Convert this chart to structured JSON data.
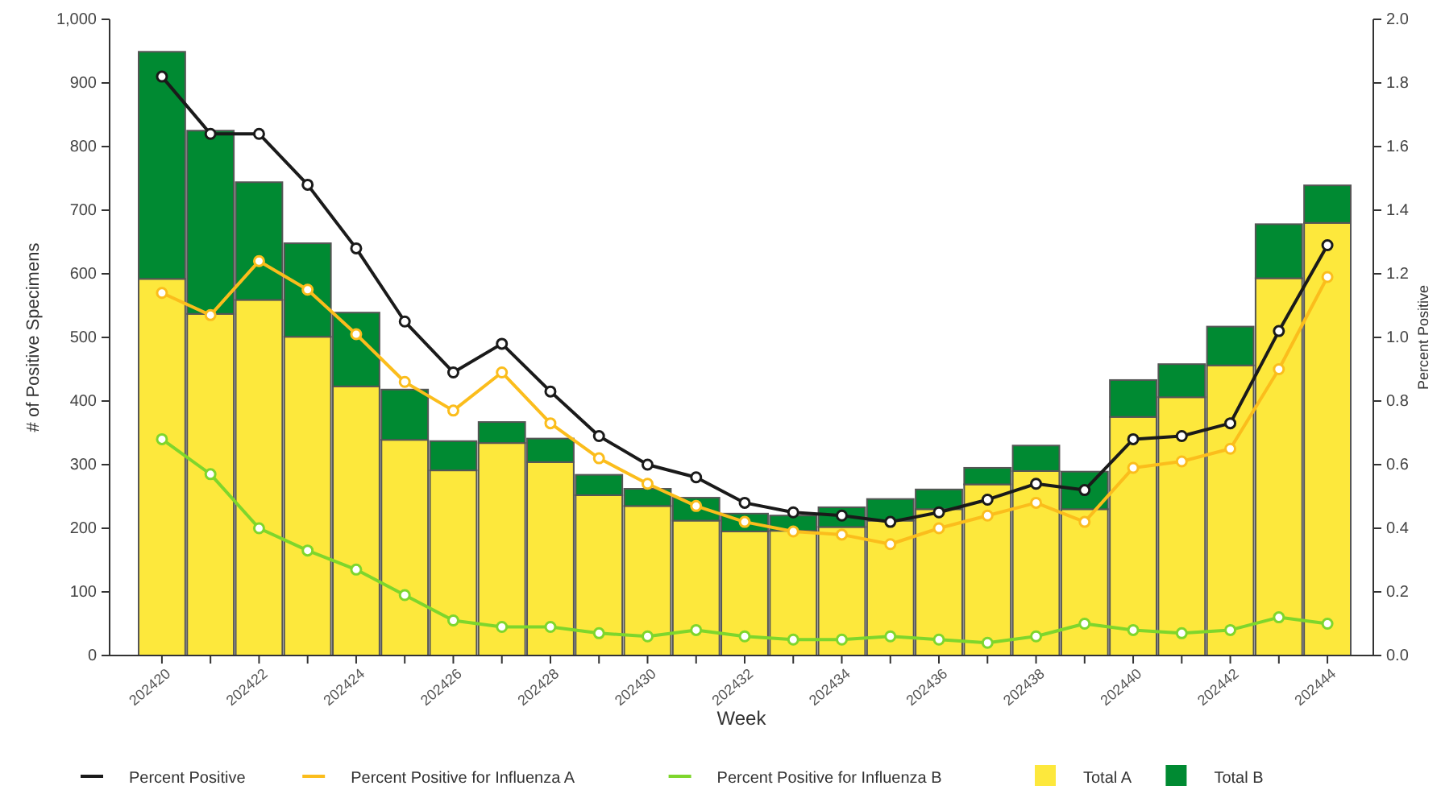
{
  "chart_data": {
    "type": "bar",
    "stacked": true,
    "xlabel": "Week",
    "ylabel": "# of Positive Specimens",
    "y2label": "Percent Positive",
    "categories": [
      "202420",
      null,
      "202422",
      null,
      "202424",
      null,
      "202426",
      null,
      "202428",
      null,
      "202430",
      null,
      "202432",
      null,
      "202434",
      null,
      "202436",
      null,
      "202438",
      null,
      "202440",
      null,
      "202442",
      null,
      "202444"
    ],
    "ylim": [
      0,
      1000
    ],
    "yticks": [
      0,
      100,
      200,
      300,
      400,
      500,
      600,
      700,
      800,
      900,
      {
        "value": 1000,
        "label": "1,000"
      }
    ],
    "y2lim": [
      0,
      2
    ],
    "y2ticks": [
      {
        "value": 0,
        "label": "0.0"
      },
      {
        "value": 0.2,
        "label": "0.2"
      },
      {
        "value": 0.4,
        "label": "0.4"
      },
      {
        "value": 0.6,
        "label": "0.6"
      },
      {
        "value": 0.8,
        "label": "0.8"
      },
      {
        "value": 1,
        "label": "1.0"
      },
      {
        "value": 1.2,
        "label": "1.2"
      },
      {
        "value": 1.4,
        "label": "1.4"
      },
      {
        "value": 1.6,
        "label": "1.6"
      },
      {
        "value": 1.8,
        "label": "1.8"
      },
      {
        "value": 2,
        "label": "2.0"
      }
    ],
    "grid": false,
    "legend": "bottom",
    "marker": "circle",
    "line_style": "solid",
    "series": [
      {
        "name": "Total A",
        "color": "#fde83c",
        "values": [
          592,
          537,
          559,
          501,
          423,
          339,
          291,
          334,
          304,
          252,
          235,
          212,
          195,
          196,
          202,
          212,
          230,
          269,
          290,
          230,
          375,
          406,
          456,
          593,
          680
        ]
      },
      {
        "name": "Total B",
        "color": "#008a32",
        "values": [
          357,
          288,
          185,
          147,
          116,
          79,
          46,
          33,
          37,
          32,
          27,
          36,
          28,
          24,
          31,
          34,
          31,
          26,
          40,
          59,
          58,
          52,
          61,
          85,
          59
        ]
      },
      {
        "name": "Percent Positive",
        "type": "line",
        "axis": "y2",
        "color": "#1a1a1a",
        "values": [
          1.82,
          1.64,
          1.64,
          1.48,
          1.28,
          1.05,
          0.89,
          0.98,
          0.83,
          0.69,
          0.6,
          0.56,
          0.48,
          0.45,
          0.44,
          0.42,
          0.45,
          0.49,
          0.54,
          0.52,
          0.68,
          0.69,
          0.73,
          1.02,
          1.29
        ]
      },
      {
        "name": "Percent Positive for Influenza A",
        "type": "line",
        "axis": "y2",
        "color": "#fbbd1c",
        "values": [
          1.14,
          1.07,
          1.24,
          1.15,
          1.01,
          0.86,
          0.77,
          0.89,
          0.73,
          0.62,
          0.54,
          0.47,
          0.42,
          0.39,
          0.38,
          0.35,
          0.4,
          0.44,
          0.48,
          0.42,
          0.59,
          0.61,
          0.65,
          0.9,
          1.19
        ]
      },
      {
        "name": "Percent Positive for Influenza B",
        "type": "line",
        "axis": "y2",
        "color": "#7ed62c",
        "values": [
          0.68,
          0.57,
          0.4,
          0.33,
          0.27,
          0.19,
          0.11,
          0.09,
          0.09,
          0.07,
          0.06,
          0.08,
          0.06,
          0.05,
          0.05,
          0.06,
          0.05,
          0.04,
          0.06,
          0.1,
          0.08,
          0.07,
          0.08,
          0.12,
          0.1
        ]
      }
    ]
  }
}
